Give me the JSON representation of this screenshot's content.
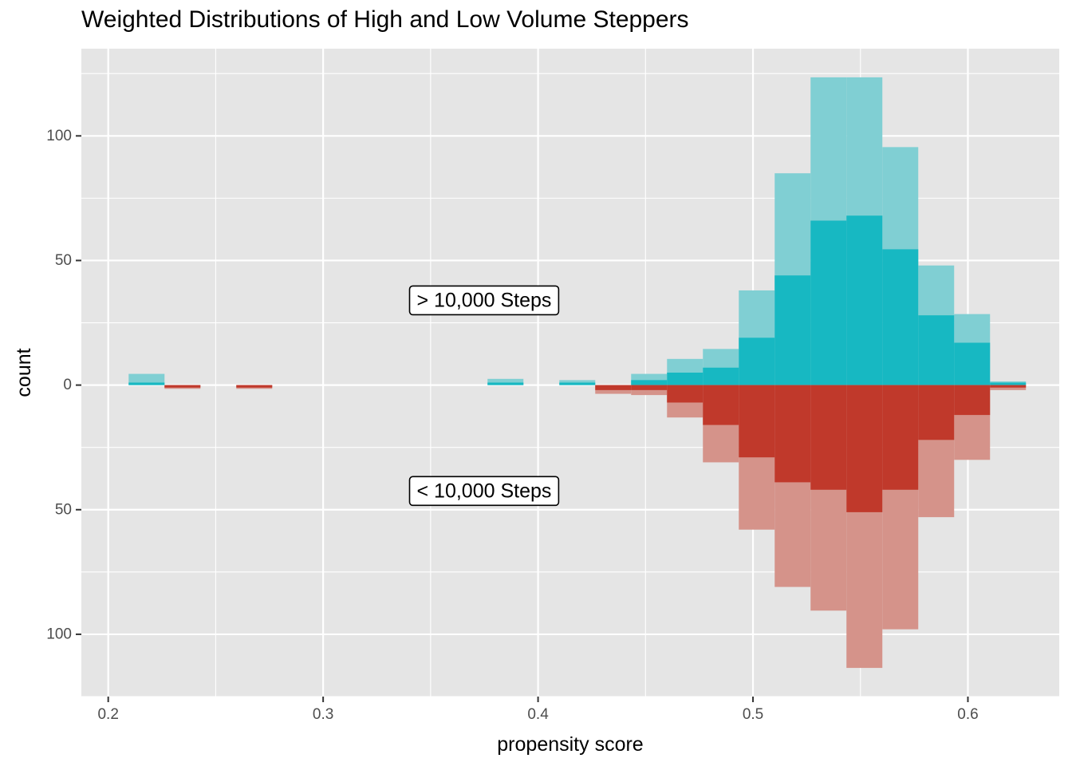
{
  "chart_data": {
    "type": "bar",
    "title": "Weighted Distributions of High and Low Volume Steppers",
    "xlabel": "propensity score",
    "ylabel": "count",
    "xlim": [
      0.1875,
      0.6425
    ],
    "ylim": [
      -125,
      135
    ],
    "x_ticks": [
      0.2,
      0.3,
      0.4,
      0.5,
      0.6
    ],
    "x_tick_labels": [
      "0.2",
      "0.3",
      "0.4",
      "0.5",
      "0.6"
    ],
    "y_ticks": [
      100,
      50,
      0,
      -50,
      -100
    ],
    "y_tick_labels": [
      "100",
      "50",
      "0",
      "50",
      "100"
    ],
    "grid": true,
    "bin_width": 0.0167,
    "bin_starts": [
      0.2095,
      0.2262,
      0.2429,
      0.2596,
      0.2763,
      0.293,
      0.3097,
      0.3264,
      0.3431,
      0.3598,
      0.3765,
      0.3932,
      0.4099,
      0.4266,
      0.4433,
      0.46,
      0.4767,
      0.4934,
      0.5101,
      0.5268,
      0.5435,
      0.5602,
      0.5769,
      0.5936,
      0.6103
    ],
    "series": [
      {
        "name": "> 10,000 Steps (weighted)",
        "color": "#80cfd3",
        "values": [
          4.5,
          0,
          0,
          0,
          0,
          0,
          0,
          0,
          0,
          0,
          2.5,
          0,
          2.0,
          0,
          4.5,
          10.5,
          14.5,
          38,
          85,
          123.5,
          123.5,
          95.5,
          48,
          28.5,
          1.5
        ]
      },
      {
        "name": "> 10,000 Steps",
        "color": "#17b8c2",
        "values": [
          1.0,
          0,
          0,
          0,
          0,
          0,
          0,
          0,
          0,
          0,
          1.0,
          0,
          1.0,
          0,
          2.0,
          5.0,
          7.0,
          19,
          44,
          66,
          68,
          54.5,
          28,
          17,
          1.0
        ]
      },
      {
        "name": "< 10,000 Steps (weighted)",
        "color": "#d5938a",
        "values": [
          0,
          1.5,
          0,
          1.5,
          0,
          0,
          0,
          0,
          0,
          0,
          0,
          0,
          0,
          3.5,
          4.0,
          13,
          31,
          58,
          81,
          90.5,
          113.5,
          98,
          53,
          30,
          2.0
        ]
      },
      {
        "name": "< 10,000 Steps",
        "color": "#c0392b",
        "values": [
          0,
          1.0,
          0,
          1.0,
          0,
          0,
          0,
          0,
          0,
          0,
          0,
          0,
          0,
          2.0,
          2.0,
          7.0,
          16,
          29,
          39,
          42,
          51,
          42,
          22,
          12,
          1.0
        ]
      }
    ],
    "annotations": [
      {
        "text": "> 10,000 Steps",
        "x": 0.3749,
        "y": 34
      },
      {
        "text": "< 10,000 Steps",
        "x": 0.3749,
        "y": -42.5
      }
    ]
  }
}
